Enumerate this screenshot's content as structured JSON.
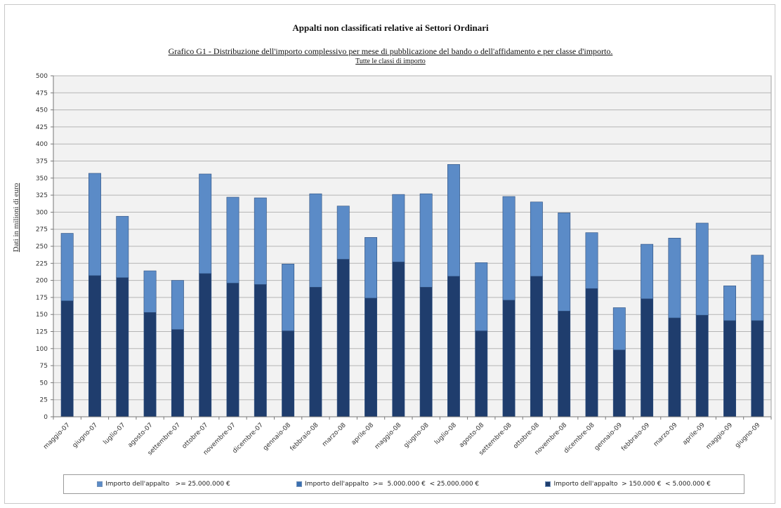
{
  "chart_data": {
    "type": "bar",
    "stacked": true,
    "title": "Appalti non classificati relative ai Settori Ordinari",
    "subtitle": "Grafico G1 - Distribuzione dell'importo complessivo per mese di pubblicazione del bando o dell'affidamento e per classe d'importo.",
    "subtitle2": "Tutte le classi di importo",
    "ylabel": "Dati in milioni di euro",
    "xlabel": "",
    "ylim": [
      0,
      500
    ],
    "yticks": [
      0,
      25,
      50,
      75,
      100,
      125,
      150,
      175,
      200,
      225,
      250,
      275,
      300,
      325,
      350,
      375,
      400,
      425,
      450,
      475,
      500
    ],
    "grid": true,
    "legend_position": "bottom",
    "categories": [
      "maggio-07",
      "giugno-07",
      "luglio-07",
      "agosto-07",
      "settembre-07",
      "ottobre-07",
      "novembre-07",
      "dicembre-07",
      "gennaio-08",
      "febbraio-08",
      "marzo-08",
      "aprile-08",
      "maggio-08",
      "giugno-08",
      "luglio-08",
      "agosto-08",
      "settembre-08",
      "ottobre-08",
      "novembre-08",
      "dicembre-08",
      "gennaio-09",
      "febbraio-09",
      "marzo-09",
      "aprile-09",
      "maggio-09",
      "giugno-09"
    ],
    "series": [
      {
        "name": "Importo dell'appalto  > 150.000 €  < 5.000.000 €",
        "color": "#1f3d6d",
        "values": [
          170,
          207,
          204,
          153,
          128,
          210,
          196,
          194,
          126,
          190,
          231,
          174,
          227,
          190,
          206,
          126,
          171,
          206,
          155,
          188,
          98,
          173,
          145,
          149,
          141,
          141
        ]
      },
      {
        "name": "Importo dell'appalto  >=  5.000.000 €  < 25.000.000 €",
        "color": "#3a6fb0",
        "values": [
          0,
          0,
          0,
          0,
          0,
          0,
          0,
          0,
          0,
          0,
          0,
          0,
          0,
          0,
          0,
          0,
          0,
          0,
          0,
          0,
          0,
          0,
          0,
          0,
          0,
          0
        ]
      },
      {
        "name": "Importo dell'appalto   >= 25.000.000 €",
        "color": "#5b8bc7",
        "values": [
          99,
          150,
          90,
          61,
          72,
          146,
          126,
          127,
          98,
          137,
          78,
          89,
          99,
          137,
          164,
          100,
          152,
          109,
          144,
          82,
          62,
          80,
          117,
          135,
          51,
          96
        ]
      }
    ]
  },
  "legend": [
    {
      "label": "Importo dell'appalto   >= 25.000.000 €",
      "color": "#5b8bc7"
    },
    {
      "label": "Importo dell'appalto  >=  5.000.000 €  < 25.000.000 €",
      "color": "#3a6fb0"
    },
    {
      "label": "Importo dell'appalto  > 150.000 €  < 5.000.000 €",
      "color": "#1f3d6d"
    }
  ]
}
